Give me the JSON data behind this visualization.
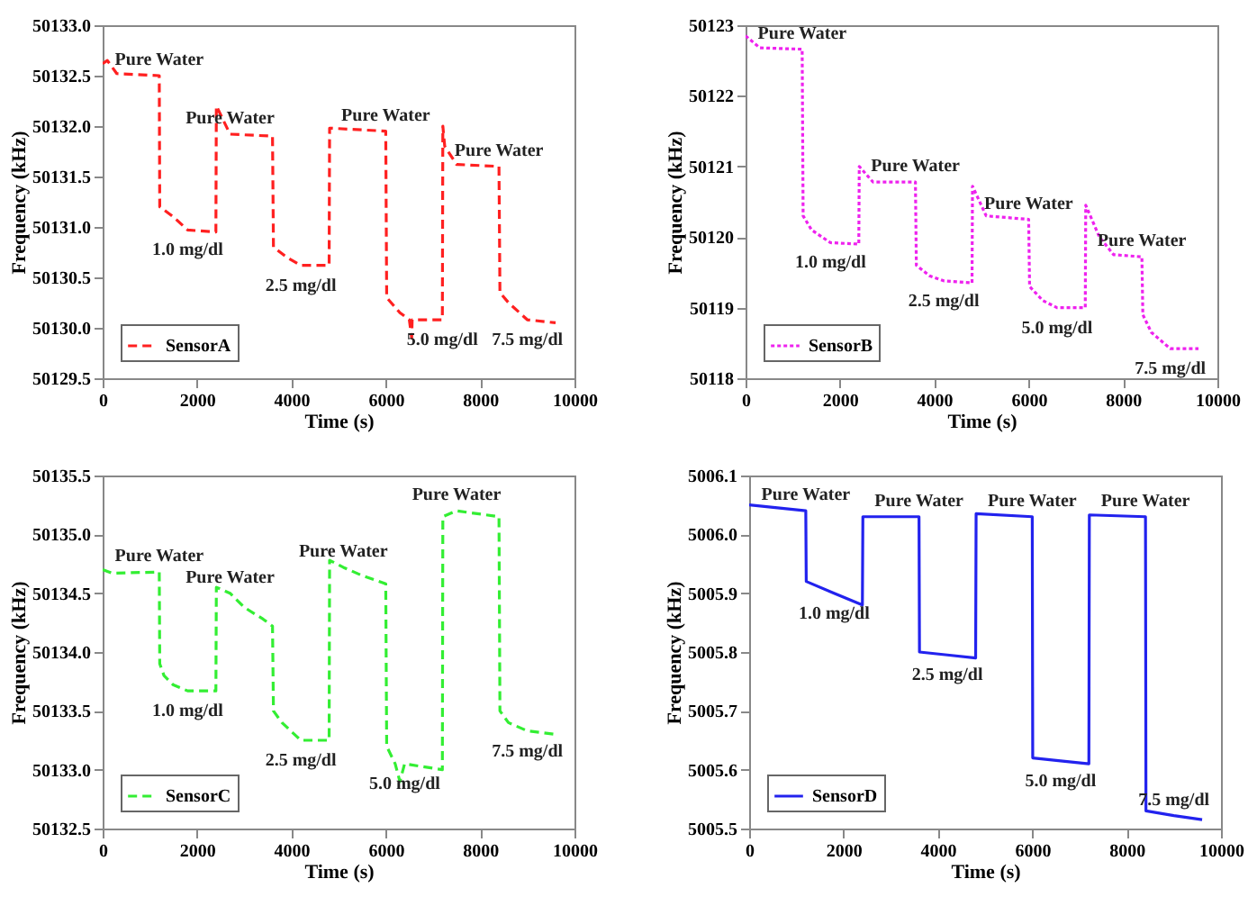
{
  "chart_data": [
    {
      "type": "line",
      "xlabel": "Time (s)",
      "ylabel": "Frequency (kHz)",
      "xlim": [
        0,
        10000
      ],
      "xticks": [
        0,
        2000,
        4000,
        6000,
        8000,
        10000
      ],
      "ylim": [
        50129.5,
        50133.0
      ],
      "yticks": [
        {
          "value": 50129.5,
          "label": "50129.5"
        },
        {
          "value": 50130,
          "label": "50130.0"
        },
        {
          "value": 50130.5,
          "label": "50130.5"
        },
        {
          "value": 50131,
          "label": "50131.0"
        },
        {
          "value": 50131.5,
          "label": "50131.5"
        },
        {
          "value": 50132,
          "label": "50132.0"
        },
        {
          "value": 50132.5,
          "label": "50132.5"
        },
        {
          "value": 50133,
          "label": "50133.0"
        }
      ],
      "legend": "bottom left",
      "line_style": "dashed",
      "x": [
        0,
        100,
        300,
        1200,
        1210,
        1500,
        1800,
        2400,
        2410,
        2700,
        3600,
        3620,
        3900,
        4200,
        4800,
        4810,
        6000,
        6020,
        6300,
        6500,
        6550,
        6560,
        7200,
        7210,
        7250,
        7500,
        8400,
        8420,
        8600,
        9000,
        9600
      ],
      "series": [
        {
          "name": "SensorA",
          "color": "#ff2020",
          "values": [
            50132.62,
            50132.65,
            50132.52,
            50132.5,
            50131.2,
            50131.1,
            50130.97,
            50130.95,
            50132.2,
            50131.92,
            50131.9,
            50130.8,
            50130.7,
            50130.62,
            50130.62,
            50131.98,
            50131.95,
            50130.3,
            50130.15,
            50130.08,
            50129.9,
            50130.08,
            50130.08,
            50132.0,
            50131.8,
            50131.62,
            50131.6,
            50130.35,
            50130.25,
            50130.08,
            50130.05
          ]
        }
      ],
      "annotations": [
        {
          "text": "Pure Water",
          "x": 1200,
          "y": 50132.5
        },
        {
          "text": "Pure Water",
          "x": 2700,
          "y": 50131.92
        },
        {
          "text": "Pure Water",
          "x": 6000,
          "y": 50131.95
        },
        {
          "text": "Pure Water",
          "x": 8400,
          "y": 50131.6
        },
        {
          "text": "1.0 mg/dl",
          "x": 1800,
          "y": 50130.97
        },
        {
          "text": "2.5 mg/dl",
          "x": 4200,
          "y": 50130.62
        },
        {
          "text": "5.0 mg/dl",
          "x": 7200,
          "y": 50130.08
        },
        {
          "text": "7.5 mg/dl",
          "x": 9000,
          "y": 50130.08
        }
      ]
    },
    {
      "type": "line",
      "xlabel": "Time (s)",
      "ylabel": "Frequency (kHz)",
      "xlim": [
        0,
        10000
      ],
      "xticks": [
        0,
        2000,
        4000,
        6000,
        8000,
        10000
      ],
      "ylim": [
        50118,
        50123
      ],
      "yticks": [
        50118,
        50119,
        50120,
        50121,
        50122,
        50123
      ],
      "legend": "bottom left",
      "line_style": "dotted",
      "x": [
        0,
        300,
        1200,
        1220,
        1400,
        1800,
        2400,
        2410,
        2700,
        3600,
        3620,
        3900,
        4200,
        4800,
        4810,
        5100,
        6000,
        6020,
        6300,
        6600,
        7200,
        7210,
        7500,
        7800,
        8400,
        8420,
        8600,
        9000,
        9600
      ],
      "series": [
        {
          "name": "SensorB",
          "color": "#ee22ee",
          "values": [
            50122.85,
            50122.68,
            50122.66,
            50120.3,
            50120.1,
            50119.92,
            50119.9,
            50121.0,
            50120.78,
            50120.78,
            50119.6,
            50119.45,
            50119.38,
            50119.35,
            50120.72,
            50120.3,
            50120.25,
            50119.3,
            50119.1,
            50119.0,
            50119.0,
            50120.45,
            50120.0,
            50119.75,
            50119.72,
            50118.9,
            50118.65,
            50118.42,
            50118.42
          ]
        }
      ],
      "annotations": [
        {
          "text": "Pure Water",
          "x": 1200,
          "y": 50122.66
        },
        {
          "text": "Pure Water",
          "x": 3600,
          "y": 50120.78
        },
        {
          "text": "Pure Water",
          "x": 6000,
          "y": 50120.25
        },
        {
          "text": "Pure Water",
          "x": 8400,
          "y": 50119.72
        },
        {
          "text": "1.0 mg/dl",
          "x": 1800,
          "y": 50119.92
        },
        {
          "text": "2.5 mg/dl",
          "x": 4200,
          "y": 50119.38
        },
        {
          "text": "5.0 mg/dl",
          "x": 6600,
          "y": 50119.0
        },
        {
          "text": "7.5 mg/dl",
          "x": 9000,
          "y": 50118.42
        }
      ]
    },
    {
      "type": "line",
      "xlabel": "Time (s)",
      "ylabel": "Frequency (kHz)",
      "xlim": [
        0,
        10000
      ],
      "xticks": [
        0,
        2000,
        4000,
        6000,
        8000,
        10000
      ],
      "ylim": [
        50132.5,
        50135.5
      ],
      "yticks": [
        {
          "value": 50132.5,
          "label": "50132.5"
        },
        {
          "value": 50133,
          "label": "50133.0"
        },
        {
          "value": 50133.5,
          "label": "50133.5"
        },
        {
          "value": 50134,
          "label": "50134.0"
        },
        {
          "value": 50134.5,
          "label": "50134.5"
        },
        {
          "value": 50135,
          "label": "50135.0"
        },
        {
          "value": 50135.5,
          "label": "50135.5"
        }
      ],
      "legend": "bottom left",
      "line_style": "dashed",
      "x": [
        0,
        200,
        1200,
        1210,
        1300,
        1500,
        1800,
        2400,
        2410,
        2700,
        3000,
        3400,
        3600,
        3620,
        3800,
        4200,
        4800,
        4810,
        5100,
        5500,
        6000,
        6020,
        6200,
        6300,
        6400,
        7200,
        7210,
        7500,
        8400,
        8420,
        8600,
        9000,
        9600
      ],
      "series": [
        {
          "name": "SensorC",
          "color": "#33ee33",
          "values": [
            50134.7,
            50134.67,
            50134.68,
            50133.9,
            50133.8,
            50133.72,
            50133.67,
            50133.67,
            50134.55,
            50134.5,
            50134.38,
            50134.28,
            50134.22,
            50133.5,
            50133.4,
            50133.25,
            50133.25,
            50134.78,
            50134.72,
            50134.65,
            50134.58,
            50133.2,
            50133.05,
            50132.9,
            50133.05,
            50133.0,
            50135.15,
            50135.2,
            50135.15,
            50133.5,
            50133.4,
            50133.33,
            50133.3
          ]
        }
      ],
      "annotations": [
        {
          "text": "Pure Water",
          "x": 1200,
          "y": 50134.68
        },
        {
          "text": "Pure Water",
          "x": 2700,
          "y": 50134.5
        },
        {
          "text": "Pure Water",
          "x": 5100,
          "y": 50134.72
        },
        {
          "text": "Pure Water",
          "x": 7500,
          "y": 50135.2
        },
        {
          "text": "1.0 mg/dl",
          "x": 1800,
          "y": 50133.67
        },
        {
          "text": "2.5 mg/dl",
          "x": 4200,
          "y": 50133.25
        },
        {
          "text": "5.0 mg/dl",
          "x": 6400,
          "y": 50133.05
        },
        {
          "text": "7.5 mg/dl",
          "x": 9000,
          "y": 50133.33
        }
      ]
    },
    {
      "type": "line",
      "xlabel": "Time (s)",
      "ylabel": "Frequency (kHz)",
      "xlim": [
        0,
        10000
      ],
      "xticks": [
        0,
        2000,
        4000,
        6000,
        8000,
        10000
      ],
      "ylim": [
        5005.5,
        5006.1
      ],
      "yticks": [
        5005.5,
        5005.6,
        5005.7,
        5005.8,
        5005.9,
        {
          "value": 5006,
          "label": "5006.0"
        },
        5006.1
      ],
      "legend": "bottom left",
      "line_style": "solid",
      "x": [
        0,
        1200,
        1210,
        1800,
        2400,
        2410,
        3600,
        3610,
        4200,
        4800,
        4810,
        6000,
        6010,
        6600,
        7200,
        7210,
        8400,
        8410,
        9000,
        9600
      ],
      "series": [
        {
          "name": "SensorD",
          "color": "#2222ee",
          "values": [
            5006.05,
            5006.04,
            5005.92,
            5005.9,
            5005.88,
            5006.03,
            5006.03,
            5005.8,
            5005.795,
            5005.79,
            5006.035,
            5006.03,
            5005.62,
            5005.615,
            5005.61,
            5006.033,
            5006.03,
            5005.53,
            5005.522,
            5005.515
          ]
        }
      ],
      "annotations": [
        {
          "text": "Pure Water",
          "x": 1200,
          "y": 5006.04
        },
        {
          "text": "Pure Water",
          "x": 3600,
          "y": 5006.03
        },
        {
          "text": "Pure Water",
          "x": 6000,
          "y": 5006.03
        },
        {
          "text": "Pure Water",
          "x": 8400,
          "y": 5006.03
        },
        {
          "text": "1.0 mg/dl",
          "x": 1800,
          "y": 5005.9
        },
        {
          "text": "2.5 mg/dl",
          "x": 4200,
          "y": 5005.795
        },
        {
          "text": "5.0 mg/dl",
          "x": 6600,
          "y": 5005.615
        },
        {
          "text": "7.5 mg/dl",
          "x": 9000,
          "y": 5005.522
        }
      ]
    }
  ]
}
